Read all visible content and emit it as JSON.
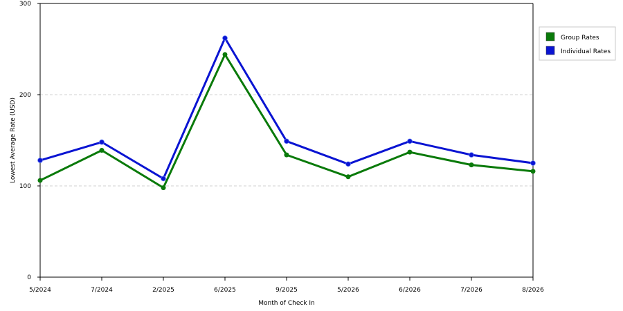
{
  "chart_data": {
    "type": "line",
    "title": "",
    "xlabel": "Month of Check In",
    "ylabel": "Lowest Average Rate (USD)",
    "categories": [
      "5/2024",
      "7/2024",
      "2/2025",
      "6/2025",
      "9/2025",
      "5/2026",
      "6/2026",
      "7/2026",
      "8/2026"
    ],
    "ylim": [
      0,
      300
    ],
    "yticks": [
      0,
      100,
      200,
      300
    ],
    "grid": true,
    "legend_position": "top-right",
    "series": [
      {
        "name": "Group Rates",
        "color": "#0a7a0a",
        "values": [
          106,
          139,
          98,
          244,
          134,
          110,
          137,
          123,
          116
        ]
      },
      {
        "name": "Individual Rates",
        "color": "#0a14d2",
        "values": [
          128,
          148,
          108,
          262,
          149,
          124,
          149,
          134,
          125
        ]
      }
    ]
  }
}
